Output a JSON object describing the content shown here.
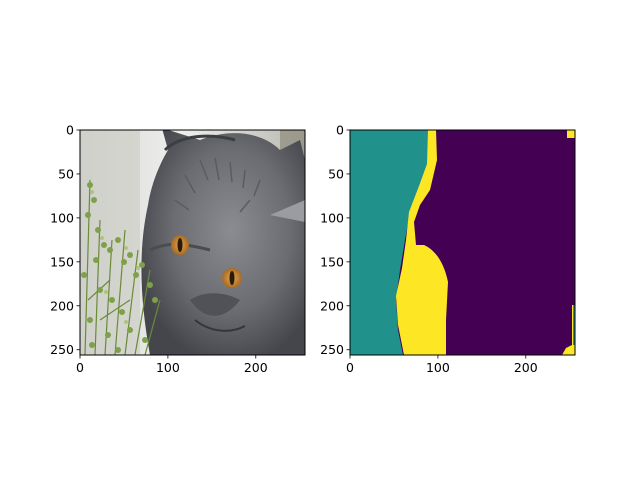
{
  "chart_data": [
    {
      "type": "image",
      "content": "photo of a grey cat with amber eyes beside green thyme",
      "xlim": [
        0,
        256
      ],
      "ylim": [
        256,
        0
      ],
      "xticks": [
        0,
        100,
        200
      ],
      "yticks": [
        0,
        50,
        100,
        150,
        200,
        250
      ],
      "title": "",
      "xlabel": "",
      "ylabel": ""
    },
    {
      "type": "heatmap",
      "content": "segmentation mask",
      "colormap": "viridis",
      "classes": [
        {
          "region": "background-left",
          "color": "#21918c"
        },
        {
          "region": "boundary",
          "color": "#fde725"
        },
        {
          "region": "cat",
          "color": "#440154"
        }
      ],
      "xlim": [
        0,
        256
      ],
      "ylim": [
        256,
        0
      ],
      "xticks": [
        0,
        100,
        200
      ],
      "yticks": [
        0,
        50,
        100,
        150,
        200,
        250
      ],
      "title": "",
      "xlabel": "",
      "ylabel": ""
    }
  ]
}
